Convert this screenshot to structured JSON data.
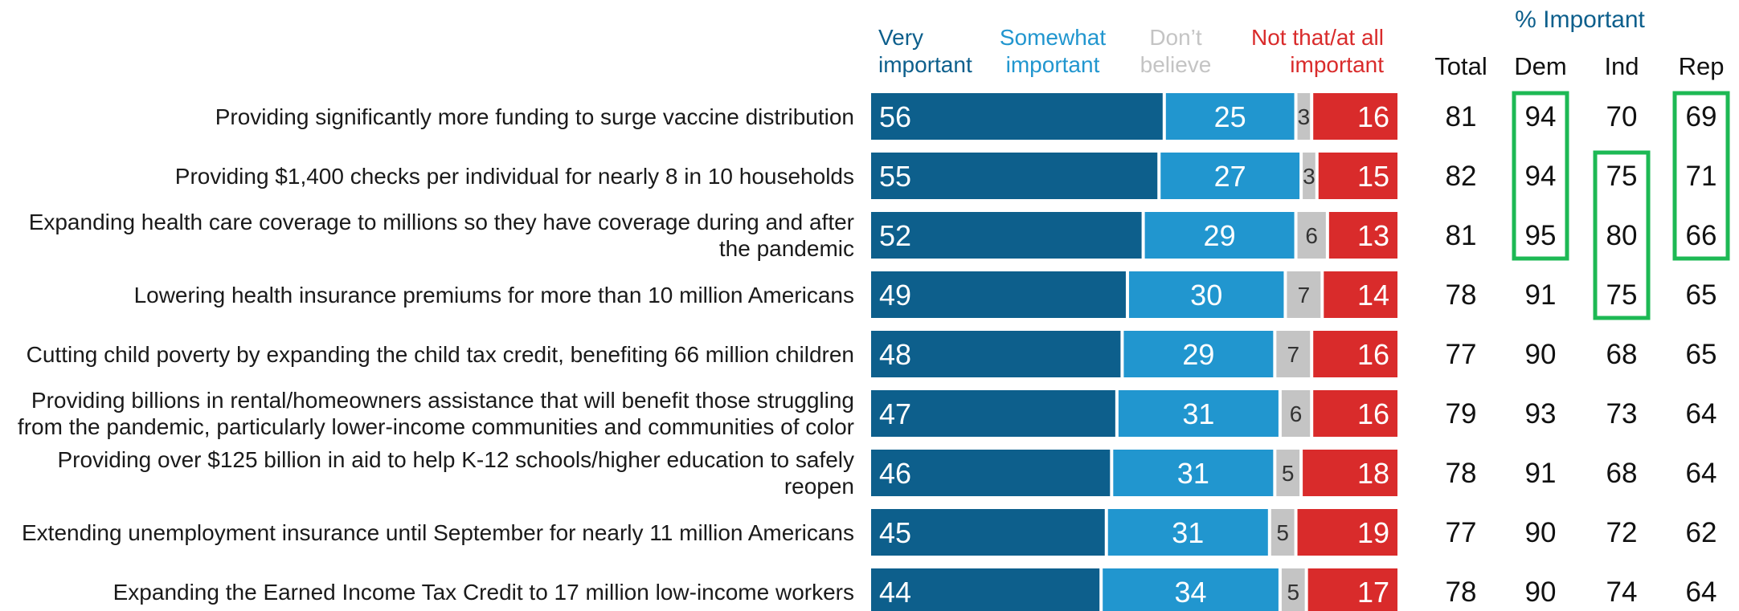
{
  "chart_data": {
    "type": "bar",
    "stacked": true,
    "orientation": "horizontal",
    "legend": [
      {
        "name": "Very important",
        "lines": [
          "Very",
          "important"
        ],
        "color": "#0d5f8c"
      },
      {
        "name": "Somewhat important",
        "lines": [
          "Somewhat",
          "important"
        ],
        "color": "#2196cf"
      },
      {
        "name": "Don’t believe",
        "lines": [
          "Don’t",
          "believe"
        ],
        "color": "#c4c4c4"
      },
      {
        "name": "Not that/at all important",
        "lines": [
          "Not that/at all",
          "important"
        ],
        "color": "#d92b2b"
      }
    ],
    "categories": [
      [
        "Providing significantly more funding to surge vaccine distribution"
      ],
      [
        "Providing $1,400 checks per individual for nearly 8 in 10 households"
      ],
      [
        "Expanding health care coverage to millions so they have coverage during and after",
        "the pandemic"
      ],
      [
        "Lowering health insurance premiums for more than 10 million Americans"
      ],
      [
        "Cutting child poverty by expanding the child tax credit, benefiting 66 million children"
      ],
      [
        "Providing billions in rental/homeowners assistance that will benefit those struggling",
        "from the pandemic, particularly lower-income communities and communities of color"
      ],
      [
        "Providing over $125 billion in aid to help K-12 schools/higher education to safely",
        "reopen"
      ],
      [
        "Extending unemployment insurance until September for nearly 11 million Americans"
      ],
      [
        "Expanding the Earned Income Tax Credit to 17 million low-income workers"
      ]
    ],
    "series": [
      {
        "name": "Very important",
        "values": [
          56,
          55,
          52,
          49,
          48,
          47,
          46,
          45,
          44
        ]
      },
      {
        "name": "Somewhat important",
        "values": [
          25,
          27,
          29,
          30,
          29,
          31,
          31,
          31,
          34
        ]
      },
      {
        "name": "Don’t believe",
        "values": [
          3,
          3,
          6,
          7,
          7,
          6,
          5,
          5,
          5
        ]
      },
      {
        "name": "Not that/at all important",
        "values": [
          16,
          15,
          13,
          14,
          16,
          16,
          18,
          19,
          17
        ]
      }
    ],
    "table": {
      "group_title": "% Important",
      "columns": [
        "Total",
        "Dem",
        "Ind",
        "Rep"
      ],
      "rows": [
        [
          81,
          94,
          70,
          69
        ],
        [
          82,
          94,
          75,
          71
        ],
        [
          81,
          95,
          80,
          66
        ],
        [
          78,
          91,
          75,
          65
        ],
        [
          77,
          90,
          68,
          65
        ],
        [
          79,
          93,
          73,
          64
        ],
        [
          78,
          91,
          68,
          64
        ],
        [
          77,
          90,
          72,
          62
        ],
        [
          78,
          90,
          74,
          64
        ]
      ],
      "highlights": [
        {
          "column": "Dem",
          "rows": [
            0,
            1,
            2
          ]
        },
        {
          "column": "Ind",
          "rows": [
            1,
            2,
            3
          ]
        },
        {
          "column": "Rep",
          "rows": [
            0,
            1,
            2
          ]
        }
      ]
    },
    "colors": {
      "very": "#0d5f8c",
      "somewhat": "#2196cf",
      "dontbelieve": "#c4c4c4",
      "notimportant": "#d92b2b",
      "highlight": "#1db954",
      "group_title": "#0d5f8c"
    }
  }
}
